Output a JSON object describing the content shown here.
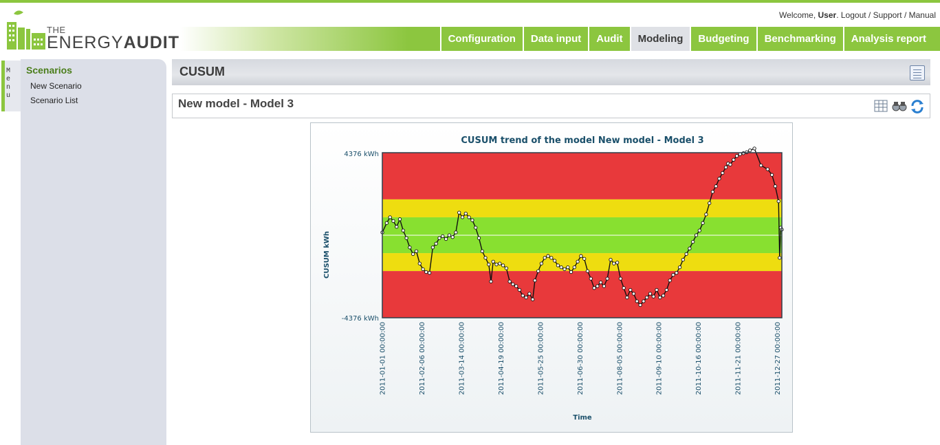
{
  "userbar": {
    "welcome": "Welcome,",
    "user": "User",
    "logout": "Logout",
    "support": "Support",
    "manual": "Manual"
  },
  "logo": {
    "the": "THE",
    "energy": "ENERGY",
    "audit": "AUDIT"
  },
  "nav": {
    "tabs": [
      {
        "label": "Configuration",
        "active": false
      },
      {
        "label": "Data input",
        "active": false
      },
      {
        "label": "Audit",
        "active": false
      },
      {
        "label": "Modeling",
        "active": true
      },
      {
        "label": "Budgeting",
        "active": false
      },
      {
        "label": "Benchmarking",
        "active": false
      },
      {
        "label": "Analysis report",
        "active": false
      }
    ]
  },
  "side_menu_label": [
    "M",
    "e",
    "n",
    "u"
  ],
  "sidebar": {
    "heading": "Scenarios",
    "items": [
      {
        "label": "New Scenario"
      },
      {
        "label": "Scenario List"
      }
    ]
  },
  "page_title": "CUSUM",
  "model_title": "New model - Model 3",
  "icons": {
    "header": "document-icon",
    "table": "table-icon",
    "view": "binoculars-icon",
    "refresh": "refresh-icon"
  },
  "colors": {
    "brand_green": "#8cc63f",
    "zone_red": "#e8393b",
    "zone_yellow": "#eedd10",
    "zone_green": "#88e030"
  },
  "chart_data": {
    "type": "line",
    "title": "CUSUM trend of the model New model - Model 3",
    "xlabel": "Time",
    "ylabel": "CUSUM kWh",
    "ylim": [
      -4376,
      4376
    ],
    "y_tick_labels": [
      "4376 kWh",
      "-4376 kWh"
    ],
    "x_tick_labels": [
      "2011-01-01 00:00:00",
      "2011-02-06 00:00:00",
      "2011-03-14 00:00:00",
      "2011-04-19 00:00:00",
      "2011-05-25 00:00:00",
      "2011-06-30 00:00:00",
      "2011-08-05 00:00:00",
      "2011-09-10 00:00:00",
      "2011-10-16 00:00:00",
      "2011-11-21 00:00:00",
      "2011-12-27 00:00:00"
    ],
    "bands": [
      {
        "from": 1900,
        "to": 4376,
        "color": "red"
      },
      {
        "from": 950,
        "to": 1900,
        "color": "yellow"
      },
      {
        "from": -950,
        "to": 950,
        "color": "green"
      },
      {
        "from": -1900,
        "to": -950,
        "color": "yellow"
      },
      {
        "from": -4376,
        "to": -1900,
        "color": "red"
      }
    ],
    "band_lines": [
      0
    ],
    "series": [
      {
        "points": [
          [
            "2011-01-01",
            150
          ],
          [
            "2011-01-05",
            650
          ],
          [
            "2011-01-08",
            950
          ],
          [
            "2011-01-11",
            750
          ],
          [
            "2011-01-14",
            450
          ],
          [
            "2011-01-17",
            850
          ],
          [
            "2011-01-20",
            250
          ],
          [
            "2011-01-23",
            -150
          ],
          [
            "2011-01-26",
            -650
          ],
          [
            "2011-01-29",
            -1000
          ],
          [
            "2011-02-01",
            -850
          ],
          [
            "2011-02-04",
            -1500
          ],
          [
            "2011-02-07",
            -1800
          ],
          [
            "2011-02-10",
            -1950
          ],
          [
            "2011-02-13",
            -2000
          ],
          [
            "2011-02-16",
            -650
          ],
          [
            "2011-02-19",
            -450
          ],
          [
            "2011-02-22",
            -150
          ],
          [
            "2011-02-25",
            -50
          ],
          [
            "2011-02-28",
            -200
          ],
          [
            "2011-03-03",
            0
          ],
          [
            "2011-03-06",
            -100
          ],
          [
            "2011-03-09",
            150
          ],
          [
            "2011-03-12",
            1200
          ],
          [
            "2011-03-15",
            950
          ],
          [
            "2011-03-18",
            1150
          ],
          [
            "2011-03-21",
            950
          ],
          [
            "2011-03-24",
            800
          ],
          [
            "2011-03-27",
            400
          ],
          [
            "2011-03-30",
            -150
          ],
          [
            "2011-04-02",
            -850
          ],
          [
            "2011-04-05",
            -1200
          ],
          [
            "2011-04-08",
            -1550
          ],
          [
            "2011-04-10",
            -2450
          ],
          [
            "2011-04-12",
            -1400
          ],
          [
            "2011-04-15",
            -1550
          ],
          [
            "2011-04-18",
            -1500
          ],
          [
            "2011-04-21",
            -1600
          ],
          [
            "2011-04-24",
            -1750
          ],
          [
            "2011-04-27",
            -2450
          ],
          [
            "2011-04-30",
            -2600
          ],
          [
            "2011-05-03",
            -2700
          ],
          [
            "2011-05-06",
            -2900
          ],
          [
            "2011-05-09",
            -3200
          ],
          [
            "2011-05-12",
            -3300
          ],
          [
            "2011-05-15",
            -3100
          ],
          [
            "2011-05-18",
            -3400
          ],
          [
            "2011-05-20",
            -2400
          ],
          [
            "2011-05-23",
            -1900
          ],
          [
            "2011-05-26",
            -1500
          ],
          [
            "2011-05-29",
            -1200
          ],
          [
            "2011-06-01",
            -1100
          ],
          [
            "2011-06-04",
            -1200
          ],
          [
            "2011-06-07",
            -1350
          ],
          [
            "2011-06-10",
            -1600
          ],
          [
            "2011-06-13",
            -1700
          ],
          [
            "2011-06-16",
            -1800
          ],
          [
            "2011-06-19",
            -1700
          ],
          [
            "2011-06-22",
            -1950
          ],
          [
            "2011-06-25",
            -1700
          ],
          [
            "2011-06-28",
            -1400
          ],
          [
            "2011-07-01",
            -1100
          ],
          [
            "2011-07-04",
            -1250
          ],
          [
            "2011-07-07",
            -1900
          ],
          [
            "2011-07-10",
            -2300
          ],
          [
            "2011-07-13",
            -2800
          ],
          [
            "2011-07-16",
            -2700
          ],
          [
            "2011-07-19",
            -2500
          ],
          [
            "2011-07-22",
            -2700
          ],
          [
            "2011-07-25",
            -2300
          ],
          [
            "2011-07-28",
            -1300
          ],
          [
            "2011-07-31",
            -1500
          ],
          [
            "2011-08-03",
            -1450
          ],
          [
            "2011-08-06",
            -2300
          ],
          [
            "2011-08-09",
            -2800
          ],
          [
            "2011-08-12",
            -3300
          ],
          [
            "2011-08-15",
            -2900
          ],
          [
            "2011-08-18",
            -3100
          ],
          [
            "2011-08-21",
            -3500
          ],
          [
            "2011-08-24",
            -3700
          ],
          [
            "2011-08-27",
            -3500
          ],
          [
            "2011-08-30",
            -3300
          ],
          [
            "2011-09-02",
            -3100
          ],
          [
            "2011-09-05",
            -3250
          ],
          [
            "2011-09-08",
            -2900
          ],
          [
            "2011-09-11",
            -3300
          ],
          [
            "2011-09-14",
            -3200
          ],
          [
            "2011-09-17",
            -2900
          ],
          [
            "2011-09-20",
            -2400
          ],
          [
            "2011-09-23",
            -2100
          ],
          [
            "2011-09-26",
            -2000
          ],
          [
            "2011-09-29",
            -1700
          ],
          [
            "2011-10-02",
            -1300
          ],
          [
            "2011-10-05",
            -1000
          ],
          [
            "2011-10-08",
            -700
          ],
          [
            "2011-10-11",
            -350
          ],
          [
            "2011-10-14",
            0
          ],
          [
            "2011-10-17",
            250
          ],
          [
            "2011-10-20",
            650
          ],
          [
            "2011-10-23",
            1100
          ],
          [
            "2011-10-26",
            1700
          ],
          [
            "2011-10-29",
            2300
          ],
          [
            "2011-11-01",
            2600
          ],
          [
            "2011-11-04",
            3000
          ],
          [
            "2011-11-07",
            3300
          ],
          [
            "2011-11-10",
            3600
          ],
          [
            "2011-11-12",
            3800
          ],
          [
            "2011-11-14",
            3750
          ],
          [
            "2011-11-17",
            4000
          ],
          [
            "2011-11-20",
            4200
          ],
          [
            "2011-11-23",
            4300
          ],
          [
            "2011-11-26",
            4350
          ],
          [
            "2011-11-29",
            4400
          ],
          [
            "2011-12-02",
            4500
          ],
          [
            "2011-12-06",
            4600
          ],
          [
            "2011-12-12",
            3700
          ],
          [
            "2011-12-18",
            3500
          ],
          [
            "2011-12-22",
            3200
          ],
          [
            "2011-12-25",
            2600
          ],
          [
            "2011-12-28",
            1800
          ],
          [
            "2011-12-29",
            -1200
          ],
          [
            "2011-12-30",
            400
          ],
          [
            "2011-12-31",
            300
          ]
        ]
      }
    ],
    "grid": false,
    "legend": "none"
  }
}
